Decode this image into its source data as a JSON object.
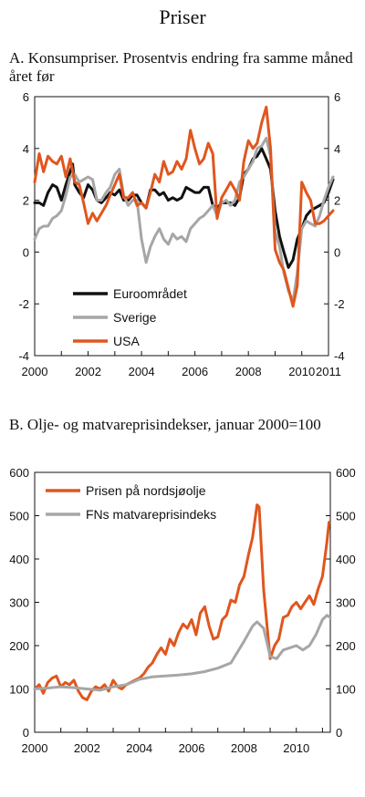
{
  "page_title": "Priser",
  "colors": {
    "euro": "#111111",
    "sverige": "#a6a6a6",
    "usa": "#e0561e",
    "nordsjo": "#e0561e",
    "fao": "#a6a6a6"
  },
  "chart_data": [
    {
      "type": "line",
      "title": "A. Konsumpriser. Prosentvis endring fra samme måned året før",
      "xlim": [
        2000,
        2011
      ],
      "ylim": [
        -4,
        6
      ],
      "x_ticks": [
        "2000",
        "2002",
        "2004",
        "2006",
        "2008",
        "2010",
        "2011"
      ],
      "y_ticks": [
        "-4",
        "-2",
        "0",
        "2",
        "4",
        "6"
      ],
      "legend_position": "bottom-left",
      "series": [
        {
          "name": "Euroområdet",
          "x": [
            2000.0,
            2000.17,
            2000.33,
            2000.5,
            2000.67,
            2000.83,
            2001.0,
            2001.17,
            2001.33,
            2001.42,
            2001.5,
            2001.67,
            2001.83,
            2002.0,
            2002.17,
            2002.33,
            2002.5,
            2002.67,
            2002.83,
            2003.0,
            2003.17,
            2003.33,
            2003.5,
            2003.67,
            2003.83,
            2004.0,
            2004.17,
            2004.33,
            2004.5,
            2004.67,
            2004.83,
            2005.0,
            2005.17,
            2005.33,
            2005.5,
            2005.67,
            2005.83,
            2006.0,
            2006.17,
            2006.33,
            2006.5,
            2006.67,
            2006.83,
            2007.0,
            2007.17,
            2007.33,
            2007.5,
            2007.67,
            2007.83,
            2008.0,
            2008.17,
            2008.33,
            2008.5,
            2008.67,
            2008.83,
            2009.0,
            2009.17,
            2009.33,
            2009.5,
            2009.67,
            2009.83,
            2010.0,
            2010.17,
            2010.33,
            2010.5,
            2010.67,
            2010.83,
            2011.0,
            2011.17
          ],
          "y": [
            1.9,
            1.9,
            1.8,
            2.3,
            2.6,
            2.5,
            2.0,
            2.6,
            3.1,
            3.4,
            2.6,
            2.3,
            2.1,
            2.6,
            2.4,
            2.0,
            1.9,
            2.1,
            2.3,
            2.2,
            2.4,
            2.0,
            2.0,
            2.2,
            2.2,
            1.9,
            1.7,
            2.4,
            2.4,
            2.2,
            2.3,
            2.0,
            2.1,
            2.0,
            2.1,
            2.5,
            2.4,
            2.3,
            2.3,
            2.5,
            2.5,
            1.8,
            1.7,
            1.9,
            1.9,
            1.9,
            1.8,
            2.1,
            3.0,
            3.2,
            3.6,
            3.7,
            4.0,
            3.6,
            3.2,
            1.6,
            0.6,
            0.0,
            -0.6,
            -0.3,
            0.5,
            0.9,
            1.4,
            1.6,
            1.7,
            1.8,
            1.9,
            2.3,
            2.8
          ]
        },
        {
          "name": "Sverige",
          "x": [
            2000.0,
            2000.17,
            2000.33,
            2000.5,
            2000.67,
            2000.83,
            2001.0,
            2001.17,
            2001.33,
            2001.5,
            2001.67,
            2001.83,
            2002.0,
            2002.17,
            2002.33,
            2002.5,
            2002.67,
            2002.83,
            2003.0,
            2003.17,
            2003.33,
            2003.5,
            2003.67,
            2003.83,
            2004.0,
            2004.17,
            2004.33,
            2004.5,
            2004.67,
            2004.83,
            2005.0,
            2005.17,
            2005.33,
            2005.5,
            2005.67,
            2005.83,
            2006.0,
            2006.17,
            2006.33,
            2006.5,
            2006.67,
            2006.83,
            2007.0,
            2007.17,
            2007.33,
            2007.5,
            2007.67,
            2007.83,
            2008.0,
            2008.17,
            2008.33,
            2008.5,
            2008.67,
            2008.83,
            2009.0,
            2009.17,
            2009.33,
            2009.5,
            2009.67,
            2009.83,
            2010.0,
            2010.17,
            2010.33,
            2010.5,
            2010.67,
            2010.83,
            2011.0,
            2011.17
          ],
          "y": [
            0.5,
            0.9,
            1.0,
            1.0,
            1.3,
            1.4,
            1.6,
            2.2,
            2.9,
            3.0,
            2.7,
            2.8,
            2.9,
            2.8,
            2.0,
            2.0,
            2.3,
            2.5,
            3.0,
            3.2,
            2.2,
            1.8,
            2.0,
            2.0,
            0.5,
            -0.4,
            0.2,
            0.6,
            0.9,
            0.5,
            0.3,
            0.7,
            0.5,
            0.6,
            0.4,
            0.9,
            1.1,
            1.3,
            1.4,
            1.6,
            1.8,
            1.4,
            1.9,
            2.0,
            1.8,
            2.0,
            2.7,
            2.9,
            3.2,
            3.5,
            4.0,
            4.1,
            4.4,
            3.7,
            0.8,
            0.2,
            -0.8,
            -1.5,
            -1.9,
            -0.8,
            0.9,
            1.2,
            1.1,
            1.0,
            1.4,
            2.0,
            2.5,
            2.9
          ]
        },
        {
          "name": "USA",
          "x": [
            2000.0,
            2000.17,
            2000.33,
            2000.5,
            2000.67,
            2000.83,
            2001.0,
            2001.17,
            2001.33,
            2001.5,
            2001.67,
            2001.83,
            2002.0,
            2002.17,
            2002.33,
            2002.5,
            2002.67,
            2002.83,
            2003.0,
            2003.17,
            2003.33,
            2003.5,
            2003.67,
            2003.83,
            2004.0,
            2004.17,
            2004.33,
            2004.5,
            2004.67,
            2004.83,
            2005.0,
            2005.17,
            2005.33,
            2005.5,
            2005.67,
            2005.83,
            2006.0,
            2006.17,
            2006.33,
            2006.5,
            2006.67,
            2006.83,
            2007.0,
            2007.17,
            2007.33,
            2007.5,
            2007.67,
            2007.83,
            2008.0,
            2008.17,
            2008.33,
            2008.5,
            2008.67,
            2008.83,
            2009.0,
            2009.17,
            2009.33,
            2009.5,
            2009.67,
            2009.83,
            2010.0,
            2010.17,
            2010.33,
            2010.5,
            2010.67,
            2010.83,
            2011.0,
            2011.17
          ],
          "y": [
            2.7,
            3.8,
            3.1,
            3.7,
            3.5,
            3.4,
            3.7,
            2.9,
            3.6,
            2.7,
            2.6,
            1.9,
            1.1,
            1.5,
            1.2,
            1.5,
            1.8,
            2.2,
            2.6,
            3.0,
            2.1,
            2.1,
            2.3,
            1.8,
            1.9,
            1.7,
            2.3,
            3.0,
            2.7,
            3.5,
            3.0,
            3.1,
            3.5,
            3.2,
            3.6,
            4.7,
            4.0,
            3.4,
            3.6,
            4.2,
            3.8,
            1.3,
            2.1,
            2.4,
            2.7,
            2.4,
            2.0,
            3.5,
            4.3,
            4.0,
            4.2,
            5.0,
            5.6,
            4.0,
            0.1,
            -0.4,
            -0.7,
            -1.4,
            -2.1,
            -1.3,
            2.7,
            2.3,
            2.0,
            1.1,
            1.1,
            1.2,
            1.4,
            1.6
          ]
        }
      ]
    },
    {
      "type": "line",
      "title": "B. Olje- og matvareprisindekser, januar 2000=100",
      "xlim": [
        2000,
        2011.3
      ],
      "ylim": [
        0,
        600
      ],
      "x_ticks": [
        "2000",
        "2002",
        "2004",
        "2006",
        "2008",
        "2010"
      ],
      "y_ticks": [
        "0",
        "100",
        "200",
        "300",
        "400",
        "500",
        "600"
      ],
      "legend_position": "top-left",
      "series": [
        {
          "name": "Prisen på nordsjøolje",
          "x": [
            2000.0,
            2000.17,
            2000.33,
            2000.5,
            2000.67,
            2000.83,
            2001.0,
            2001.17,
            2001.33,
            2001.5,
            2001.67,
            2001.83,
            2002.0,
            2002.17,
            2002.33,
            2002.5,
            2002.67,
            2002.83,
            2003.0,
            2003.17,
            2003.33,
            2003.5,
            2003.67,
            2003.83,
            2004.0,
            2004.17,
            2004.33,
            2004.5,
            2004.67,
            2004.83,
            2005.0,
            2005.17,
            2005.33,
            2005.5,
            2005.67,
            2005.83,
            2006.0,
            2006.17,
            2006.33,
            2006.5,
            2006.67,
            2006.83,
            2007.0,
            2007.17,
            2007.33,
            2007.5,
            2007.67,
            2007.83,
            2008.0,
            2008.17,
            2008.33,
            2008.5,
            2008.58,
            2008.75,
            2008.92,
            2009.0,
            2009.17,
            2009.33,
            2009.5,
            2009.67,
            2009.83,
            2010.0,
            2010.17,
            2010.33,
            2010.5,
            2010.67,
            2010.83,
            2011.0,
            2011.17,
            2011.25
          ],
          "y": [
            100,
            110,
            90,
            115,
            125,
            130,
            105,
            115,
            110,
            120,
            95,
            80,
            75,
            95,
            105,
            100,
            110,
            95,
            120,
            105,
            100,
            110,
            115,
            120,
            125,
            135,
            150,
            160,
            180,
            195,
            180,
            215,
            200,
            230,
            250,
            240,
            260,
            225,
            275,
            290,
            245,
            215,
            220,
            260,
            270,
            305,
            300,
            340,
            360,
            410,
            450,
            525,
            520,
            330,
            220,
            170,
            200,
            215,
            265,
            270,
            290,
            300,
            285,
            300,
            315,
            295,
            330,
            360,
            440,
            485
          ]
        },
        {
          "name": "FNs matvareprisindeks",
          "x": [
            2000.0,
            2000.5,
            2001.0,
            2001.5,
            2002.0,
            2002.5,
            2003.0,
            2003.5,
            2004.0,
            2004.5,
            2005.0,
            2005.5,
            2006.0,
            2006.5,
            2007.0,
            2007.5,
            2008.0,
            2008.33,
            2008.5,
            2008.75,
            2009.0,
            2009.25,
            2009.5,
            2009.75,
            2010.0,
            2010.25,
            2010.5,
            2010.75,
            2011.0,
            2011.17,
            2011.3
          ],
          "y": [
            100,
            102,
            105,
            103,
            100,
            97,
            105,
            110,
            122,
            128,
            130,
            132,
            135,
            140,
            148,
            160,
            210,
            245,
            255,
            240,
            175,
            170,
            190,
            195,
            200,
            190,
            200,
            225,
            260,
            270,
            265
          ]
        }
      ]
    }
  ]
}
